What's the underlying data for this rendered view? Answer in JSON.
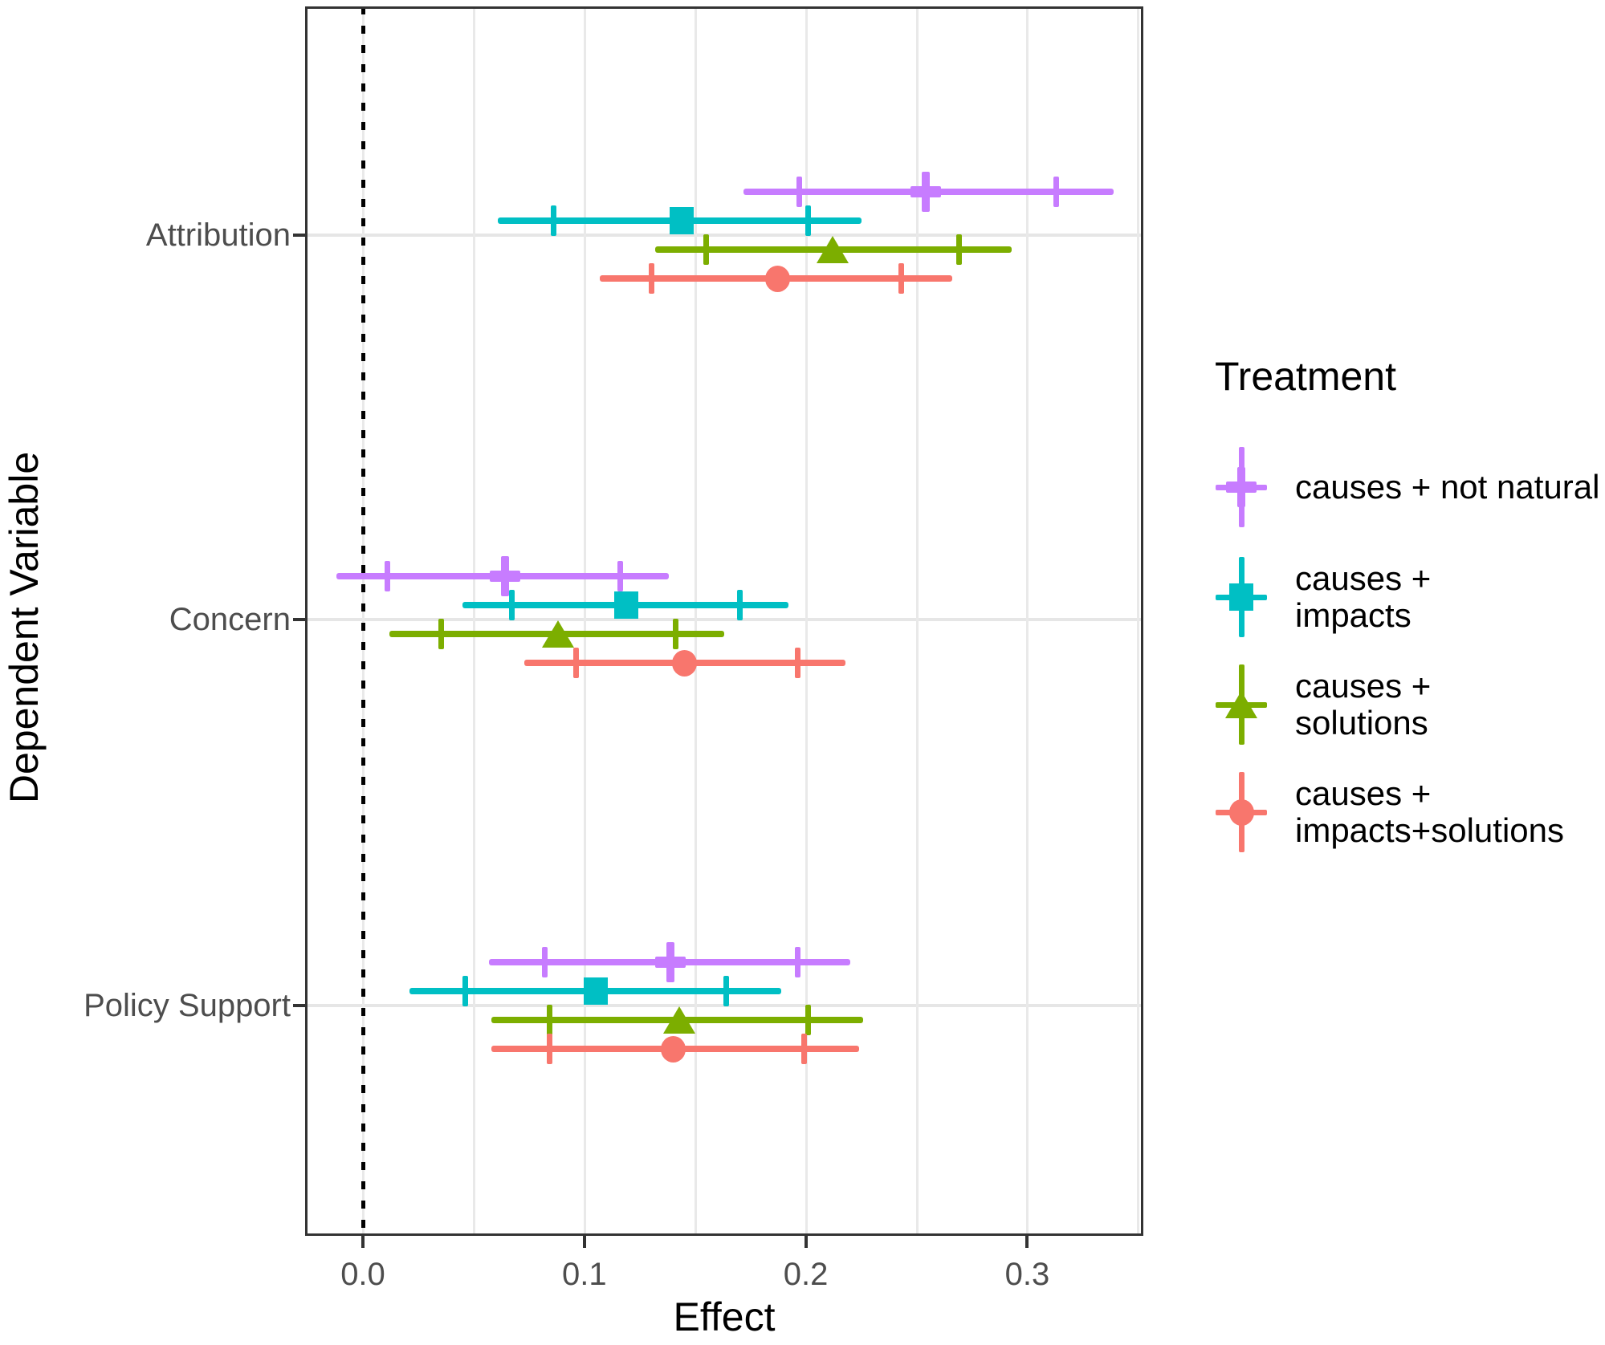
{
  "chart_data": {
    "type": "scatter",
    "subtype": "forest-pointrange",
    "title": "",
    "xlabel": "Effect",
    "ylabel": "Dependent Variable",
    "legend_title": "Treatment",
    "xlim": [
      -0.026,
      0.352
    ],
    "x_ticks": [
      {
        "value": 0.0,
        "label": "0.0"
      },
      {
        "value": 0.1,
        "label": "0.1"
      },
      {
        "value": 0.2,
        "label": "0.2"
      },
      {
        "value": 0.3,
        "label": "0.3"
      }
    ],
    "gridline_values": [
      0.0,
      0.05,
      0.1,
      0.15,
      0.2,
      0.25,
      0.3,
      0.35
    ],
    "reference_line_x": 0.0,
    "grid": "on",
    "legend_position": "right",
    "categories": [
      "Attribution",
      "Concern",
      "Policy Support"
    ],
    "series": [
      {
        "name": "causes + not natural",
        "legend_label_lines": [
          "causes + not natural"
        ],
        "color": "#c77cff",
        "marker": "plus",
        "points": [
          {
            "category": "Attribution",
            "estimate": 0.254,
            "inner_ci": [
              0.197,
              0.313
            ],
            "outer_ci": [
              0.172,
              0.339
            ]
          },
          {
            "category": "Concern",
            "estimate": 0.064,
            "inner_ci": [
              0.011,
              0.116
            ],
            "outer_ci": [
              -0.012,
              0.138
            ]
          },
          {
            "category": "Policy Support",
            "estimate": 0.139,
            "inner_ci": [
              0.082,
              0.196
            ],
            "outer_ci": [
              0.057,
              0.22
            ]
          }
        ]
      },
      {
        "name": "causes + impacts",
        "legend_label_lines": [
          "causes +",
          "impacts"
        ],
        "color": "#00bfc4",
        "marker": "square",
        "points": [
          {
            "category": "Attribution",
            "estimate": 0.144,
            "inner_ci": [
              0.086,
              0.201
            ],
            "outer_ci": [
              0.061,
              0.225
            ]
          },
          {
            "category": "Concern",
            "estimate": 0.119,
            "inner_ci": [
              0.067,
              0.17
            ],
            "outer_ci": [
              0.045,
              0.192
            ]
          },
          {
            "category": "Policy Support",
            "estimate": 0.105,
            "inner_ci": [
              0.046,
              0.164
            ],
            "outer_ci": [
              0.021,
              0.189
            ]
          }
        ]
      },
      {
        "name": "causes + solutions",
        "legend_label_lines": [
          "causes +",
          "solutions"
        ],
        "color": "#7cae00",
        "marker": "triangle",
        "points": [
          {
            "category": "Attribution",
            "estimate": 0.212,
            "inner_ci": [
              0.155,
              0.269
            ],
            "outer_ci": [
              0.132,
              0.293
            ]
          },
          {
            "category": "Concern",
            "estimate": 0.088,
            "inner_ci": [
              0.035,
              0.141
            ],
            "outer_ci": [
              0.012,
              0.163
            ]
          },
          {
            "category": "Policy Support",
            "estimate": 0.143,
            "inner_ci": [
              0.084,
              0.201
            ],
            "outer_ci": [
              0.058,
              0.226
            ]
          }
        ]
      },
      {
        "name": "causes + impacts+solutions",
        "legend_label_lines": [
          "causes +",
          "impacts+solutions"
        ],
        "color": "#f8766d",
        "marker": "circle",
        "points": [
          {
            "category": "Attribution",
            "estimate": 0.187,
            "inner_ci": [
              0.13,
              0.243
            ],
            "outer_ci": [
              0.107,
              0.266
            ]
          },
          {
            "category": "Concern",
            "estimate": 0.145,
            "inner_ci": [
              0.096,
              0.196
            ],
            "outer_ci": [
              0.073,
              0.218
            ]
          },
          {
            "category": "Policy Support",
            "estimate": 0.14,
            "inner_ci": [
              0.084,
              0.199
            ],
            "outer_ci": [
              0.058,
              0.224
            ]
          }
        ]
      }
    ]
  }
}
